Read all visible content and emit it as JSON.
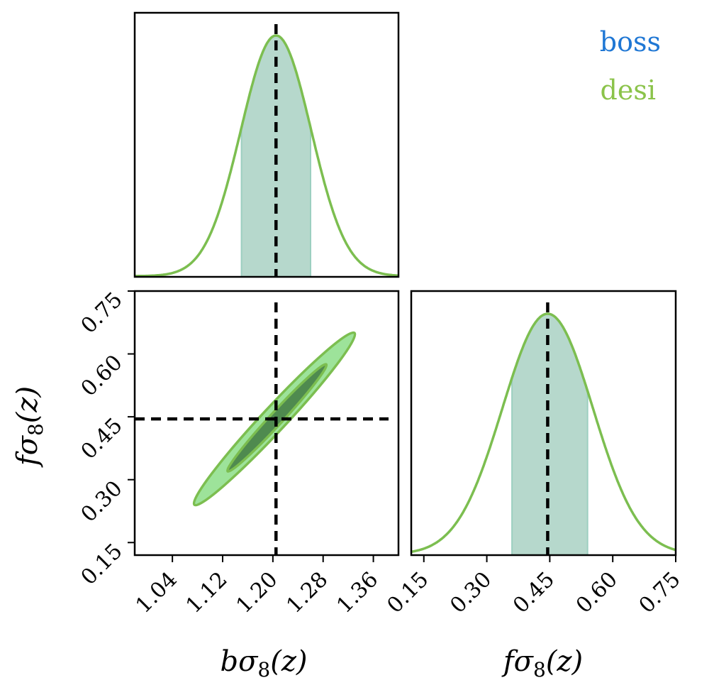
{
  "chart_data": {
    "type": "corner",
    "parameters": [
      {
        "name": "bσ8",
        "axis_label_main": "bσ",
        "axis_label_sub": "8",
        "axis_label_suffix": "(z)",
        "fiducial": 1.205,
        "lim": [
          0.98,
          1.4
        ],
        "ticks": [
          "1.04",
          "1.12",
          "1.20",
          "1.28",
          "1.36"
        ],
        "mean": 1.205,
        "sigma": 0.056,
        "band": [
          1.15,
          1.26
        ]
      },
      {
        "name": "fσ8",
        "axis_label_main": "fσ",
        "axis_label_sub": "8",
        "axis_label_suffix": "(z)",
        "fiducial": 0.445,
        "lim": [
          0.12,
          0.75
        ],
        "ticks": [
          "0.15",
          "0.30",
          "0.45",
          "0.60",
          "0.75"
        ],
        "mean": 0.445,
        "sigma": 0.108,
        "band": [
          0.36,
          0.54
        ]
      }
    ],
    "series": [
      {
        "name": "boss",
        "color": "#1f77d4"
      },
      {
        "name": "desi",
        "color": "#8bc34a"
      }
    ],
    "contour_68": [
      [
        1.128,
        0.32
      ],
      [
        1.285,
        0.575
      ]
    ],
    "contour_95": [
      [
        1.075,
        0.24
      ],
      [
        1.33,
        0.65
      ]
    ],
    "colors": {
      "band_fill": "#b6d8cc",
      "inner_fill": "#4f8a4f",
      "outer_fill": "#9de39a",
      "line": "#7cbe50"
    },
    "legend_placement": "top-right",
    "fiducial_style": "dashed-black"
  }
}
